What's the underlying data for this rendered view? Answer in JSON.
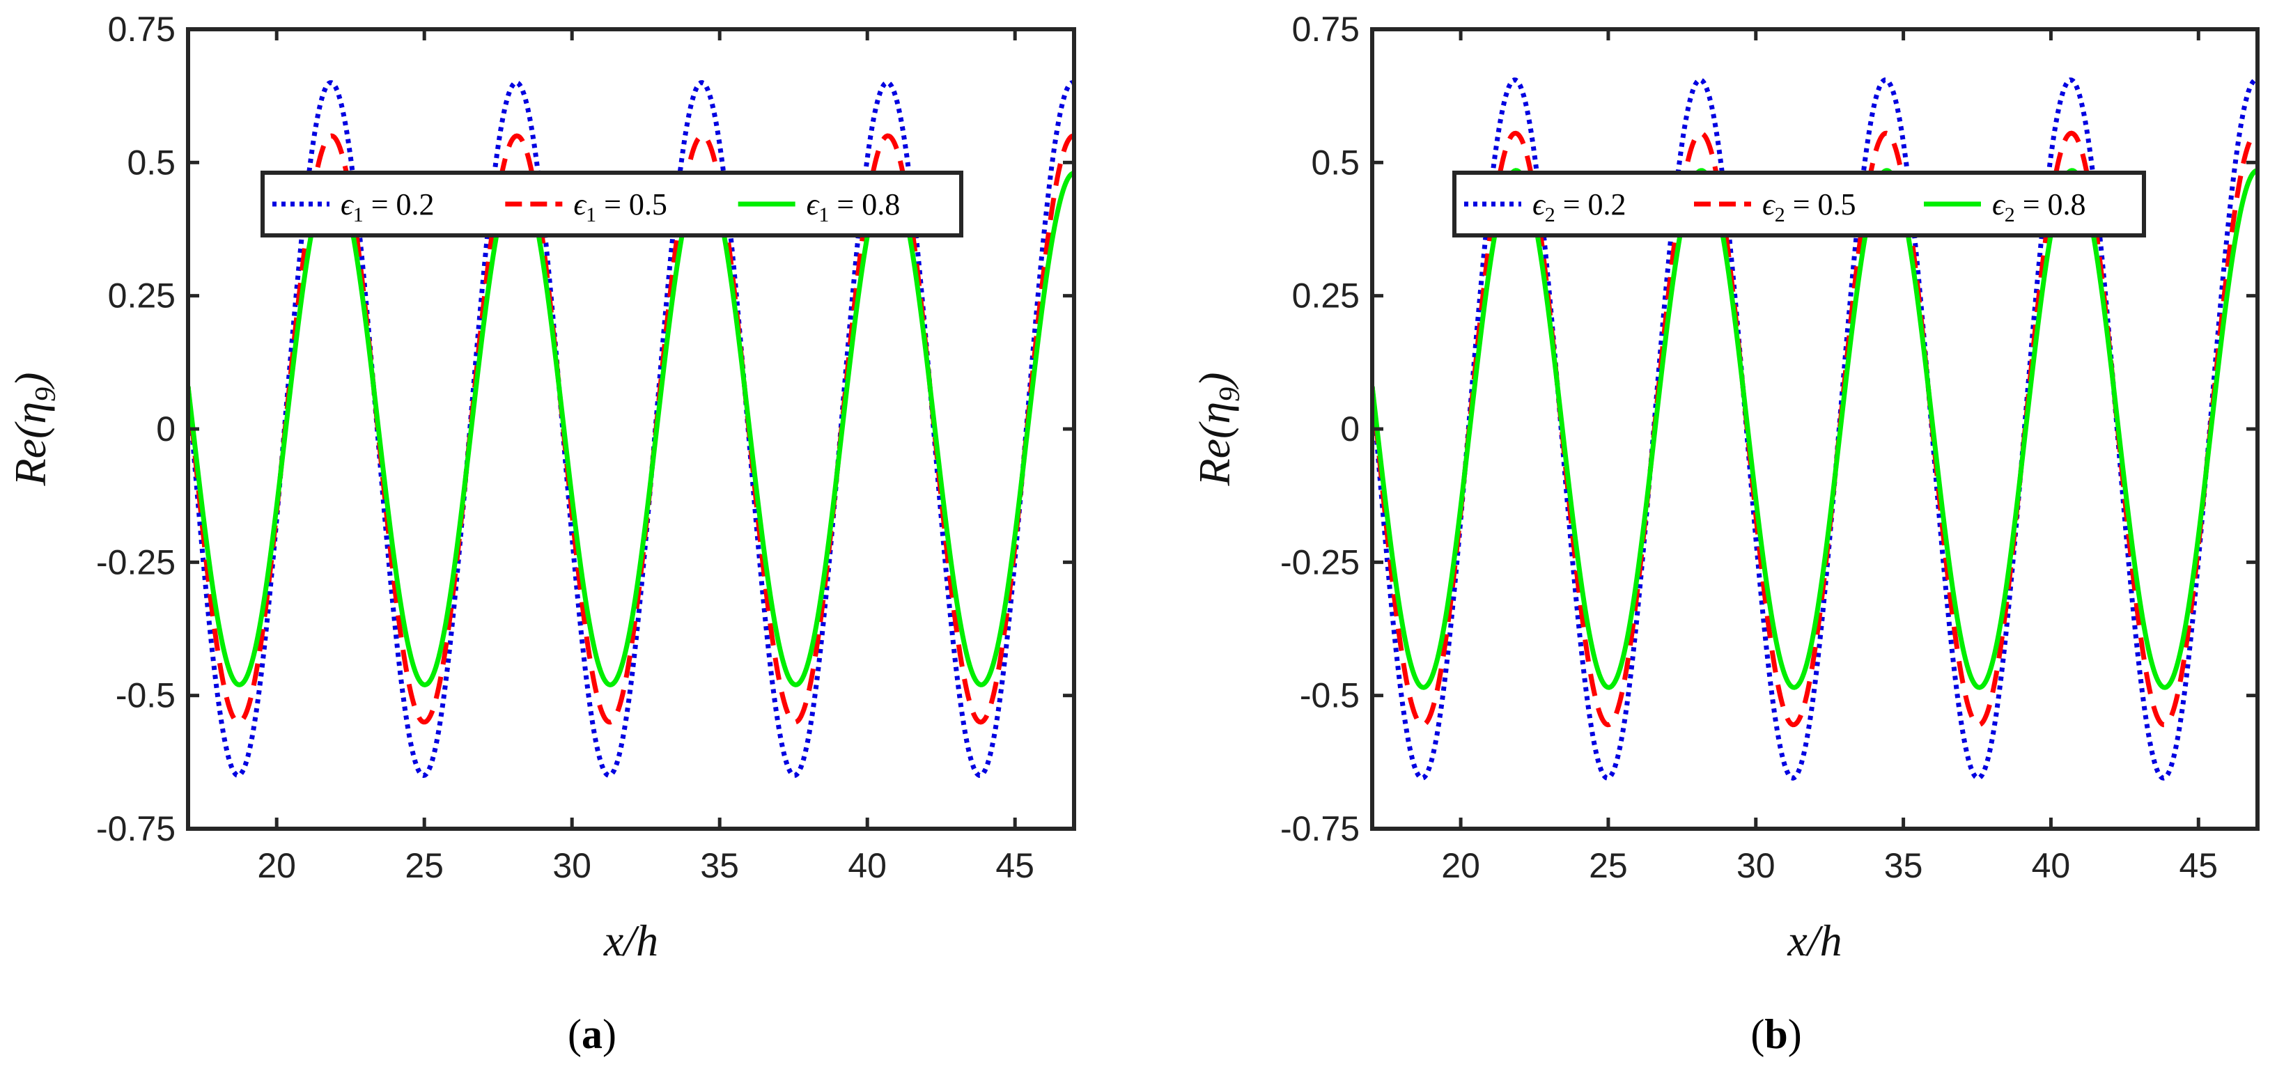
{
  "chart_data": [
    {
      "type": "line",
      "panel": "a",
      "caption_open": "(",
      "caption_letter": "a",
      "caption_close": ")",
      "xlabel": "x/h",
      "ylabel_main": "Re(η",
      "ylabel_sub": "9",
      "ylabel_close": ")",
      "xlim": [
        17,
        47
      ],
      "ylim": [
        -0.75,
        0.75
      ],
      "xticks": [
        20,
        25,
        30,
        35,
        40,
        45
      ],
      "yticks": [
        0.75,
        0.5,
        0.25,
        0,
        -0.25,
        -0.5,
        -0.75
      ],
      "ytick_labels": [
        "0.75",
        "0.5",
        "0.25",
        "0",
        "-0.25",
        "-0.5",
        "-0.75"
      ],
      "xtick_labels": [
        "20",
        "25",
        "30",
        "35",
        "40",
        "45"
      ],
      "wave": {
        "period": 6.28,
        "phase_x0": 17.0,
        "phase_value": 0.08
      },
      "series": [
        {
          "name": "ϵ1 = 0.2",
          "sym": "ϵ",
          "sub": "1",
          "eq": " = 0.2",
          "amplitude": 0.65,
          "color": "#0000e0",
          "style": "dotted"
        },
        {
          "name": "ϵ1 = 0.5",
          "sym": "ϵ",
          "sub": "1",
          "eq": " = 0.5",
          "amplitude": 0.55,
          "color": "#ff0000",
          "style": "dashed"
        },
        {
          "name": "ϵ1 = 0.8",
          "sym": "ϵ",
          "sub": "1",
          "eq": " = 0.8",
          "amplitude": 0.48,
          "color": "#00ee00",
          "style": "solid"
        }
      ],
      "legend_position": "center"
    },
    {
      "type": "line",
      "panel": "b",
      "caption_open": "(",
      "caption_letter": "b",
      "caption_close": ")",
      "xlabel": "x/h",
      "ylabel_main": "Re(η",
      "ylabel_sub": "9",
      "ylabel_close": ")",
      "xlim": [
        17,
        47
      ],
      "ylim": [
        -0.75,
        0.75
      ],
      "xticks": [
        20,
        25,
        30,
        35,
        40,
        45
      ],
      "yticks": [
        0.75,
        0.5,
        0.25,
        0,
        -0.25,
        -0.5,
        -0.75
      ],
      "ytick_labels": [
        "0.75",
        "0.5",
        "0.25",
        "0",
        "-0.25",
        "-0.5",
        "-0.75"
      ],
      "xtick_labels": [
        "20",
        "25",
        "30",
        "35",
        "40",
        "45"
      ],
      "wave": {
        "period": 6.28,
        "phase_x0": 17.0,
        "phase_value": 0.08
      },
      "series": [
        {
          "name": "ϵ2 = 0.2",
          "sym": "ϵ",
          "sub": "2",
          "eq": " = 0.2",
          "amplitude": 0.655,
          "color": "#0000e0",
          "style": "dotted"
        },
        {
          "name": "ϵ2 = 0.5",
          "sym": "ϵ",
          "sub": "2",
          "eq": " = 0.5",
          "amplitude": 0.555,
          "color": "#ff0000",
          "style": "dashed"
        },
        {
          "name": "ϵ2 = 0.8",
          "sym": "ϵ",
          "sub": "2",
          "eq": " = 0.8",
          "amplitude": 0.485,
          "color": "#00ee00",
          "style": "solid"
        }
      ],
      "legend_position": "center"
    }
  ]
}
